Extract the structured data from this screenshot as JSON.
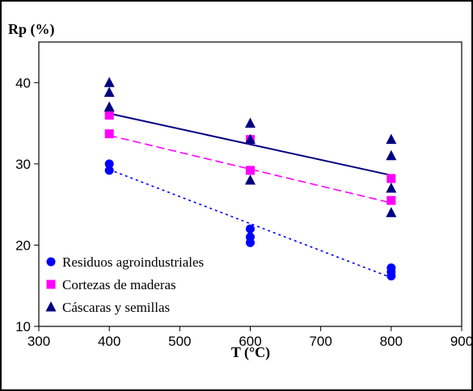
{
  "chart_data": {
    "type": "scatter",
    "title": "",
    "xlabel": "T (°C)",
    "ylabel": "Rp (%)",
    "xlim": [
      300,
      900
    ],
    "ylim": [
      10,
      45
    ],
    "x_ticks": [
      "300",
      "400",
      "500",
      "600",
      "700",
      "800",
      "900"
    ],
    "y_ticks": [
      "10",
      "20",
      "30",
      "40"
    ],
    "grid": false,
    "legend_position": "bottom-left",
    "series": [
      {
        "name": "Residuos agroindustriales",
        "marker": "circle",
        "color": "#0000ff",
        "points": [
          [
            400,
            29.2
          ],
          [
            400,
            30.0
          ],
          [
            600,
            20.3
          ],
          [
            600,
            21.0
          ],
          [
            600,
            22.0
          ],
          [
            800,
            16.2
          ],
          [
            800,
            16.7
          ],
          [
            800,
            17.2
          ]
        ],
        "trend": {
          "style": "dotted",
          "color": "#0000ff",
          "from": [
            400,
            29.3
          ],
          "to": [
            800,
            16.0
          ]
        }
      },
      {
        "name": "Cortezas de maderas",
        "marker": "square",
        "color": "#ff00ff",
        "points": [
          [
            400,
            33.7
          ],
          [
            400,
            36.0
          ],
          [
            600,
            29.2
          ],
          [
            600,
            33.0
          ],
          [
            800,
            25.5
          ],
          [
            800,
            28.2
          ]
        ],
        "trend": {
          "style": "dashed",
          "color": "#ff00ff",
          "from": [
            400,
            33.5
          ],
          "to": [
            800,
            25.2
          ]
        }
      },
      {
        "name": "Cáscaras y semillas",
        "marker": "triangle",
        "color": "#000080",
        "points": [
          [
            400,
            37.0
          ],
          [
            400,
            38.8
          ],
          [
            400,
            40.0
          ],
          [
            600,
            28.0
          ],
          [
            600,
            33.0
          ],
          [
            600,
            35.0
          ],
          [
            800,
            24.0
          ],
          [
            800,
            27.0
          ],
          [
            800,
            31.0
          ],
          [
            800,
            33.0
          ]
        ],
        "trend": {
          "style": "solid",
          "color": "#000080",
          "from": [
            400,
            36.2
          ],
          "to": [
            800,
            28.6
          ]
        }
      }
    ]
  }
}
